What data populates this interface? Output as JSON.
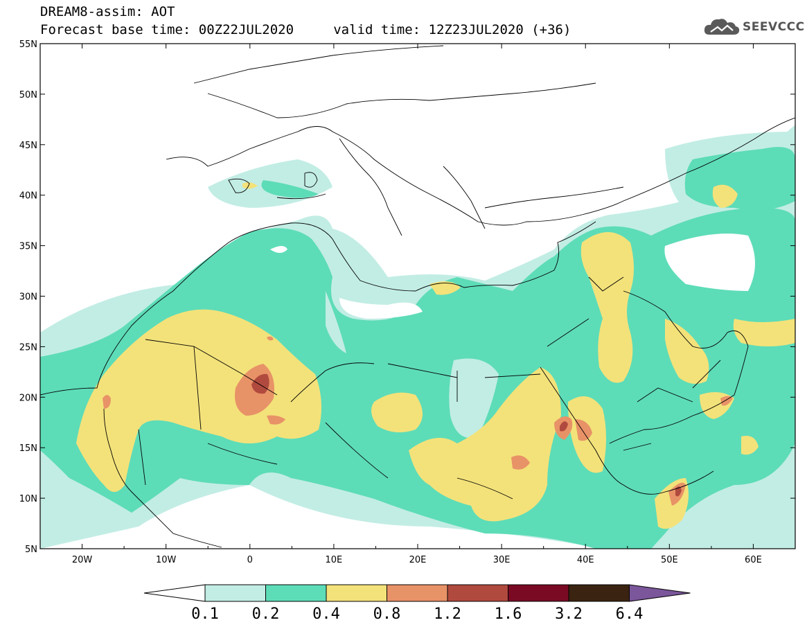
{
  "header": {
    "line1": "DREAM8-assim: AOT",
    "line2": "Forecast base time: 00Z22JUL2020     valid time: 12Z23JUL2020 (+36)"
  },
  "logo": {
    "text": "SEEVCCC",
    "icon": "cloud-icon",
    "color": "#5a5a5a"
  },
  "map": {
    "lon_range": [
      -25,
      65
    ],
    "lat_range": [
      5,
      55
    ],
    "lon_ticks": [
      "20W",
      "10W",
      "0",
      "10E",
      "20E",
      "30E",
      "40E",
      "50E",
      "60E"
    ],
    "lat_ticks": [
      "55N",
      "50N",
      "45N",
      "40N",
      "35N",
      "30N",
      "25N",
      "20N",
      "15N",
      "10N",
      "5N"
    ]
  },
  "colorbar": {
    "labels": [
      "0.1",
      "0.2",
      "0.4",
      "0.8",
      "1.2",
      "1.6",
      "3.2",
      "6.4"
    ],
    "colors": [
      "#ffffff",
      "#c2ede4",
      "#5ddcb8",
      "#f3e27a",
      "#e89267",
      "#b14a3e",
      "#7a0a24",
      "#3a2310",
      "#7b569a"
    ]
  }
}
